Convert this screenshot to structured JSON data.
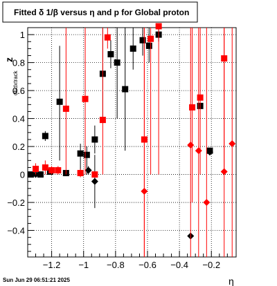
{
  "chart_data": {
    "type": "scatter",
    "title": "Fitted δ 1/β  versus η and p for Global proton",
    "xlabel": "η",
    "ylabel_main": "z",
    "ylabel_sub": "dEdxtrack",
    "footer": "Sun Jun 29 06:51:21 2025",
    "xlim": [
      -1.35,
      -0.045
    ],
    "ylim": [
      -0.59,
      1.05
    ],
    "xticks": [
      {
        "v": -1.2,
        "label": "−1.2"
      },
      {
        "v": -1.0,
        "label": "−1"
      },
      {
        "v": -0.8,
        "label": "−0.8"
      },
      {
        "v": -0.6,
        "label": "−0.6"
      },
      {
        "v": -0.4,
        "label": "−0.4"
      },
      {
        "v": -0.2,
        "label": "−0.2"
      }
    ],
    "yticks": [
      {
        "v": -0.4,
        "label": "−0.4"
      },
      {
        "v": -0.2,
        "label": "−0.2"
      },
      {
        "v": 0,
        "label": "0"
      },
      {
        "v": 0.2,
        "label": "0.2"
      },
      {
        "v": 0.4,
        "label": "0.4"
      },
      {
        "v": 0.6,
        "label": "0.6"
      },
      {
        "v": 0.8,
        "label": "0.8"
      },
      {
        "v": 1.0,
        "label": "1"
      }
    ],
    "grid": true,
    "series": [
      {
        "color": "#000000",
        "marker": "square",
        "points": [
          {
            "x": -1.33,
            "y": 0.0,
            "ylo": 0.0,
            "yhi": 0.0
          },
          {
            "x": -1.27,
            "y": 0.0,
            "ylo": 0.0,
            "yhi": 0.0
          },
          {
            "x": -1.24,
            "y": 0.275,
            "ylo": 0.24,
            "yhi": 0.31
          },
          {
            "x": -1.21,
            "y": 0.02,
            "ylo": 0.0,
            "yhi": 0.04
          },
          {
            "x": -1.15,
            "y": 0.52,
            "ylo": 0.1,
            "yhi": 0.92
          },
          {
            "x": -1.11,
            "y": 0.01,
            "ylo": 0.0,
            "yhi": 0.02
          },
          {
            "x": -1.02,
            "y": 0.15,
            "ylo": 0.0,
            "yhi": 0.22
          },
          {
            "x": -0.98,
            "y": 0.14,
            "ylo": 0.0,
            "yhi": 0.2
          },
          {
            "x": -0.93,
            "y": 0.25,
            "ylo": 0.15,
            "yhi": 0.35
          },
          {
            "x": -0.88,
            "y": 0.72,
            "ylo": 0.4,
            "yhi": 1.05
          },
          {
            "x": -0.83,
            "y": 0.86,
            "ylo": 0.76,
            "yhi": 0.96
          },
          {
            "x": -0.79,
            "y": 0.8,
            "ylo": 0.4,
            "yhi": 1.05
          },
          {
            "x": -0.74,
            "y": 0.61,
            "ylo": 0.17,
            "yhi": 1.05
          },
          {
            "x": -0.69,
            "y": 0.9,
            "ylo": 0.75,
            "yhi": 1.05
          },
          {
            "x": -0.63,
            "y": 0.96,
            "ylo": 0.85,
            "yhi": 1.05
          },
          {
            "x": -0.59,
            "y": 0.92,
            "ylo": 0.8,
            "yhi": 1.05
          },
          {
            "x": -0.53,
            "y": 1.0,
            "ylo": 0.95,
            "yhi": 1.05
          },
          {
            "x": -0.27,
            "y": 0.49,
            "ylo": 0.49,
            "yhi": 0.49
          },
          {
            "x": -0.21,
            "y": 0.17,
            "ylo": 0.17,
            "yhi": 0.17
          }
        ]
      },
      {
        "color": "#000000",
        "marker": "diamond",
        "points": [
          {
            "x": -1.3,
            "y": 0.0,
            "ylo": -0.02,
            "yhi": 0.02
          },
          {
            "x": -0.97,
            "y": 0.03,
            "ylo": 0.0,
            "yhi": 0.06
          },
          {
            "x": -0.93,
            "y": -0.05,
            "ylo": -0.24,
            "yhi": 0.14
          },
          {
            "x": -0.33,
            "y": -0.44,
            "ylo": -0.44,
            "yhi": -0.44
          },
          {
            "x": -0.21,
            "y": 0.16,
            "ylo": 0.16,
            "yhi": 0.16
          }
        ]
      },
      {
        "color": "#ff0000",
        "marker": "square",
        "points": [
          {
            "x": -1.3,
            "y": 0.04,
            "ylo": 0.0,
            "yhi": 0.08
          },
          {
            "x": -1.24,
            "y": 0.05,
            "ylo": 0.0,
            "yhi": 0.1
          },
          {
            "x": -1.2,
            "y": 0.03,
            "ylo": 0.0,
            "yhi": 0.06
          },
          {
            "x": -1.16,
            "y": 0.03,
            "ylo": 0.0,
            "yhi": 0.06
          },
          {
            "x": -1.11,
            "y": 0.47,
            "ylo": 0.0,
            "yhi": 1.05
          },
          {
            "x": -1.02,
            "y": 0.01,
            "ylo": -0.02,
            "yhi": 0.04
          },
          {
            "x": -0.99,
            "y": 0.54,
            "ylo": 0.0,
            "yhi": 1.05
          },
          {
            "x": -0.93,
            "y": 0.0,
            "ylo": -0.02,
            "yhi": 0.02
          },
          {
            "x": -0.88,
            "y": 0.39,
            "ylo": 0.0,
            "yhi": 1.05
          },
          {
            "x": -0.85,
            "y": 0.98,
            "ylo": 0.9,
            "yhi": 1.05
          },
          {
            "x": -0.62,
            "y": 0.25,
            "ylo": -0.59,
            "yhi": 1.05
          },
          {
            "x": -0.58,
            "y": 0.97,
            "ylo": 0.0,
            "yhi": 1.05
          },
          {
            "x": -0.53,
            "y": 1.06,
            "ylo": 0.0,
            "yhi": 1.05
          },
          {
            "x": -0.32,
            "y": 0.48,
            "ylo": -0.2,
            "yhi": 1.05
          },
          {
            "x": -0.27,
            "y": 0.55,
            "ylo": 0.0,
            "yhi": 1.05
          },
          {
            "x": -0.12,
            "y": 0.83,
            "ylo": 0.0,
            "yhi": 1.05
          }
        ]
      },
      {
        "color": "#ff0000",
        "marker": "diamond",
        "points": [
          {
            "x": -0.62,
            "y": -0.12,
            "ylo": -0.59,
            "yhi": 1.05
          },
          {
            "x": -0.33,
            "y": 0.21,
            "ylo": -0.59,
            "yhi": 1.05
          },
          {
            "x": -0.28,
            "y": 0.17,
            "ylo": -0.59,
            "yhi": 1.05
          },
          {
            "x": -0.23,
            "y": -0.2,
            "ylo": -0.59,
            "yhi": 1.05
          },
          {
            "x": -0.12,
            "y": 0.02,
            "ylo": -0.59,
            "yhi": 1.05
          },
          {
            "x": -0.07,
            "y": 0.22,
            "ylo": -0.59,
            "yhi": 1.05
          }
        ]
      }
    ]
  }
}
